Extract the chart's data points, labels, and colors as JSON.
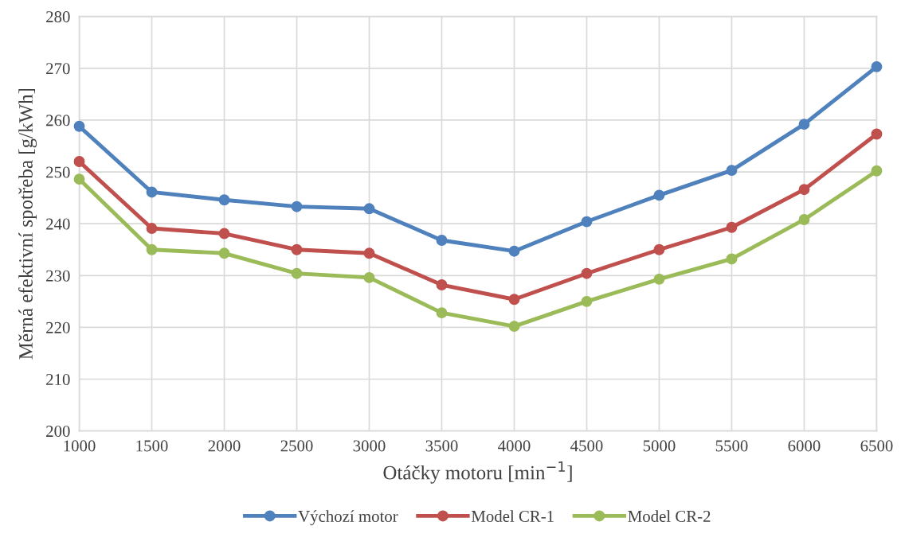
{
  "chart_data": {
    "type": "line",
    "xlabel": "Otáčky motoru [min$^{−1}$]",
    "ylabel": "Měrná efektivní spotřeba [g/kWh]",
    "x": [
      1000,
      1500,
      2000,
      2500,
      3000,
      3500,
      4000,
      4500,
      5000,
      5500,
      6000,
      6500
    ],
    "series": [
      {
        "name": "Výchozí motor",
        "color": "#4f81bd",
        "values": [
          258.8,
          246.1,
          244.6,
          243.3,
          242.9,
          236.8,
          234.7,
          240.4,
          245.5,
          250.3,
          259.2,
          270.3
        ]
      },
      {
        "name": "Model CR-1",
        "color": "#c0504d",
        "values": [
          252.0,
          239.1,
          238.1,
          235.0,
          234.3,
          228.2,
          225.4,
          230.4,
          235.0,
          239.3,
          246.6,
          257.3
        ]
      },
      {
        "name": "Model CR-2",
        "color": "#9bbb59",
        "values": [
          248.6,
          235.0,
          234.3,
          230.4,
          229.6,
          222.8,
          220.2,
          225.0,
          229.3,
          233.2,
          240.8,
          250.2
        ]
      }
    ],
    "xlim": [
      1000,
      6500
    ],
    "xticks": [
      1000,
      1500,
      2000,
      2500,
      3000,
      3500,
      4000,
      4500,
      5000,
      5500,
      6000,
      6500
    ],
    "ylim": [
      200,
      280
    ],
    "yticks": [
      200,
      210,
      220,
      230,
      240,
      250,
      260,
      270,
      280
    ],
    "grid": true,
    "legend": "bottom",
    "marker": "circle",
    "line_style": "solid"
  }
}
